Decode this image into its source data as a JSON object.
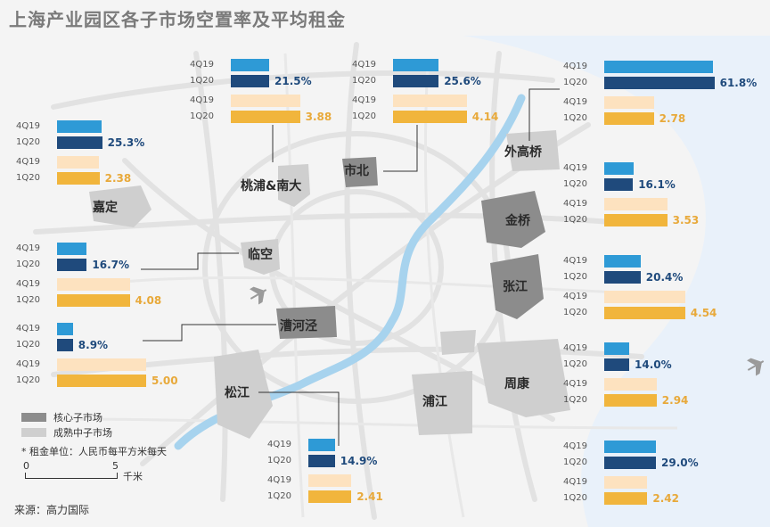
{
  "title": "上海产业园区各子市场空置率及平均租金",
  "labels": {
    "q_prev": "4Q19",
    "q_curr": "1Q20"
  },
  "colors": {
    "vacancy_prev": "#2e9ad6",
    "vacancy_curr": "#1f4a7c",
    "rent_prev": "#fde2bf",
    "rent_curr": "#f1b53c",
    "core_market": "#8c8c8c",
    "mature_market": "#cfcfcf",
    "river": "#a7d3ee",
    "sea": "#e9f1fa"
  },
  "legend": {
    "core": "核心子市场",
    "mature": "成熟中子市场"
  },
  "note": "* 租金单位：人民币每平方米每天",
  "scale": {
    "zero": "0",
    "five": "5",
    "unit": "千米"
  },
  "source": "来源：高力国际",
  "map_icons": [
    "airplane-icon-hongqiao",
    "airplane-icon-pudong"
  ],
  "submarkets": [
    {
      "name": "嘉定",
      "type": "mature",
      "vacancy_4q19": 25.0,
      "vacancy_1q20": 25.3,
      "vacancy_label": "25.3%",
      "rent_4q19": 2.35,
      "rent_1q20": 2.38,
      "rent_label": "2.38"
    },
    {
      "name": "桃浦&南大",
      "type": "mature",
      "vacancy_4q19": 21.5,
      "vacancy_1q20": 21.5,
      "vacancy_label": "21.5%",
      "rent_4q19": 3.88,
      "rent_1q20": 3.88,
      "rent_label": "3.88"
    },
    {
      "name": "市北",
      "type": "core",
      "vacancy_4q19": 25.6,
      "vacancy_1q20": 25.6,
      "vacancy_label": "25.6%",
      "rent_4q19": 4.14,
      "rent_1q20": 4.14,
      "rent_label": "4.14"
    },
    {
      "name": "外高桥",
      "type": "mature",
      "vacancy_4q19": 61.0,
      "vacancy_1q20": 61.8,
      "vacancy_label": "61.8%",
      "rent_4q19": 2.78,
      "rent_1q20": 2.78,
      "rent_label": "2.78"
    },
    {
      "name": "金桥",
      "type": "core",
      "vacancy_4q19": 16.5,
      "vacancy_1q20": 16.1,
      "vacancy_label": "16.1%",
      "rent_4q19": 3.53,
      "rent_1q20": 3.53,
      "rent_label": "3.53"
    },
    {
      "name": "临空",
      "type": "core",
      "vacancy_4q19": 16.5,
      "vacancy_1q20": 16.7,
      "vacancy_label": "16.7%",
      "rent_4q19": 4.08,
      "rent_1q20": 4.08,
      "rent_label": "4.08"
    },
    {
      "name": "张江",
      "type": "core",
      "vacancy_4q19": 20.4,
      "vacancy_1q20": 20.4,
      "vacancy_label": "20.4%",
      "rent_4q19": 4.54,
      "rent_1q20": 4.54,
      "rent_label": "4.54"
    },
    {
      "name": "漕河泾",
      "type": "core",
      "vacancy_4q19": 9.0,
      "vacancy_1q20": 8.9,
      "vacancy_label": "8.9%",
      "rent_4q19": 5.0,
      "rent_1q20": 5.0,
      "rent_label": "5.00"
    },
    {
      "name": "周康",
      "type": "mature",
      "vacancy_4q19": 14.0,
      "vacancy_1q20": 14.0,
      "vacancy_label": "14.0%",
      "rent_4q19": 2.94,
      "rent_1q20": 2.94,
      "rent_label": "2.94"
    },
    {
      "name": "松江",
      "type": "mature",
      "vacancy_4q19": 14.9,
      "vacancy_1q20": 14.9,
      "vacancy_label": "14.9%",
      "rent_4q19": 2.41,
      "rent_1q20": 2.41,
      "rent_label": "2.41"
    },
    {
      "name": "浦江",
      "type": "mature",
      "vacancy_4q19": 29.0,
      "vacancy_1q20": 29.0,
      "vacancy_label": "29.0%",
      "rent_4q19": 2.42,
      "rent_1q20": 2.42,
      "rent_label": "2.42"
    }
  ]
}
